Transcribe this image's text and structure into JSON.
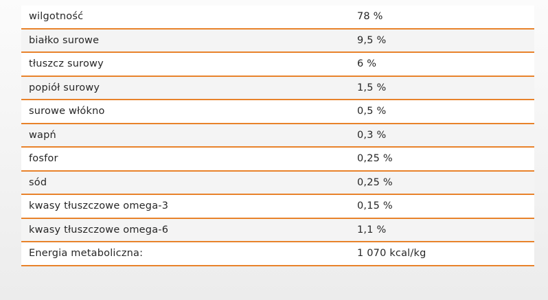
{
  "nutrition_table": {
    "rows": [
      {
        "name": "wilgotność",
        "value": "78 %"
      },
      {
        "name": "białko surowe",
        "value": "9,5 %"
      },
      {
        "name": "tłuszcz surowy",
        "value": "6 %"
      },
      {
        "name": "popiół surowy",
        "value": "1,5 %"
      },
      {
        "name": "surowe włókno",
        "value": "0,5 %"
      },
      {
        "name": "wapń",
        "value": "0,3 %"
      },
      {
        "name": "fosfor",
        "value": "0,25 %"
      },
      {
        "name": "sód",
        "value": "0,25 %"
      },
      {
        "name": "kwasy tłuszczowe omega-3",
        "value": "0,15 %"
      },
      {
        "name": "kwasy tłuszczowe omega-6",
        "value": "1,1 %"
      },
      {
        "name": "Energia metaboliczna:",
        "value": "1 070 kcal/kg"
      }
    ]
  },
  "colors": {
    "row_divider": "#e8822a",
    "text": "#262626"
  }
}
